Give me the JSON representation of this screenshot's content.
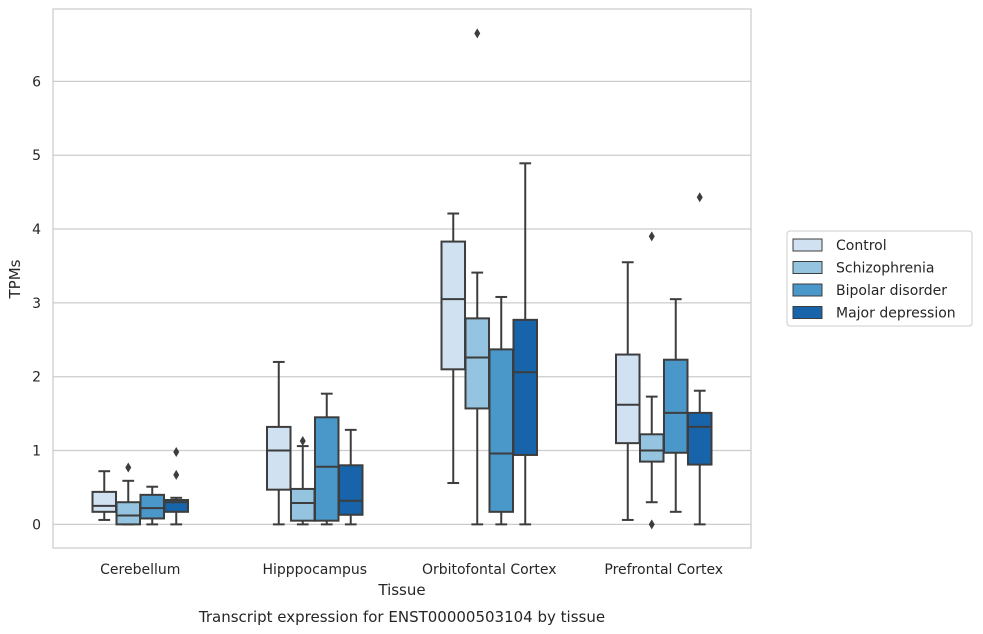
{
  "chart_data": {
    "type": "box",
    "title": "",
    "caption": "Transcript expression for ENST00000503104 by tissue",
    "xlabel": "Tissue",
    "ylabel": "TPMs",
    "ylim": [
      -0.32,
      6.98
    ],
    "yticks": [
      0,
      1,
      2,
      3,
      4,
      5,
      6
    ],
    "grid": true,
    "legend_position": "right",
    "categories": [
      "Cerebellum",
      "Hipppocampus",
      "Orbitofontal Cortex",
      "Prefrontal Cortex"
    ],
    "series": [
      {
        "name": "Control",
        "color": "#d0e1f2",
        "boxes": [
          {
            "whislo": 0.06,
            "q1": 0.17,
            "med": 0.25,
            "q3": 0.44,
            "whishi": 0.72,
            "fliers": []
          },
          {
            "whislo": 0.0,
            "q1": 0.47,
            "med": 1.0,
            "q3": 1.32,
            "whishi": 2.2,
            "fliers": []
          },
          {
            "whislo": 0.56,
            "q1": 2.1,
            "med": 3.05,
            "q3": 3.83,
            "whishi": 4.21,
            "fliers": []
          },
          {
            "whislo": 0.06,
            "q1": 1.1,
            "med": 1.62,
            "q3": 2.3,
            "whishi": 3.55,
            "fliers": []
          }
        ]
      },
      {
        "name": "Schizophrenia",
        "color": "#94c4df",
        "boxes": [
          {
            "whislo": 0.0,
            "q1": 0.0,
            "med": 0.12,
            "q3": 0.3,
            "whishi": 0.59,
            "fliers": [
              0.77
            ]
          },
          {
            "whislo": 0.0,
            "q1": 0.05,
            "med": 0.29,
            "q3": 0.48,
            "whishi": 1.06,
            "fliers": [
              1.13
            ]
          },
          {
            "whislo": 0.0,
            "q1": 1.57,
            "med": 2.26,
            "q3": 2.79,
            "whishi": 3.41,
            "fliers": [
              6.65
            ]
          },
          {
            "whislo": 0.3,
            "q1": 0.85,
            "med": 1.0,
            "q3": 1.22,
            "whishi": 1.73,
            "fliers": [
              3.9,
              0.0
            ]
          }
        ]
      },
      {
        "name": "Bipolar disorder",
        "color": "#4a98c9",
        "boxes": [
          {
            "whislo": 0.0,
            "q1": 0.08,
            "med": 0.22,
            "q3": 0.4,
            "whishi": 0.51,
            "fliers": []
          },
          {
            "whislo": 0.0,
            "q1": 0.05,
            "med": 0.78,
            "q3": 1.45,
            "whishi": 1.77,
            "fliers": []
          },
          {
            "whislo": 0.0,
            "q1": 0.17,
            "med": 0.96,
            "q3": 2.37,
            "whishi": 3.08,
            "fliers": []
          },
          {
            "whislo": 0.17,
            "q1": 0.97,
            "med": 1.51,
            "q3": 2.23,
            "whishi": 3.05,
            "fliers": []
          }
        ]
      },
      {
        "name": "Major depression",
        "color": "#1764ab",
        "boxes": [
          {
            "whislo": 0.0,
            "q1": 0.17,
            "med": 0.3,
            "q3": 0.33,
            "whishi": 0.36,
            "fliers": [
              0.67,
              0.98
            ]
          },
          {
            "whislo": 0.0,
            "q1": 0.13,
            "med": 0.32,
            "q3": 0.8,
            "whishi": 1.28,
            "fliers": []
          },
          {
            "whislo": 0.0,
            "q1": 0.94,
            "med": 2.06,
            "q3": 2.77,
            "whishi": 4.89,
            "fliers": []
          },
          {
            "whislo": 0.0,
            "q1": 0.81,
            "med": 1.32,
            "q3": 1.51,
            "whishi": 1.81,
            "fliers": [
              4.43
            ]
          }
        ]
      }
    ]
  }
}
